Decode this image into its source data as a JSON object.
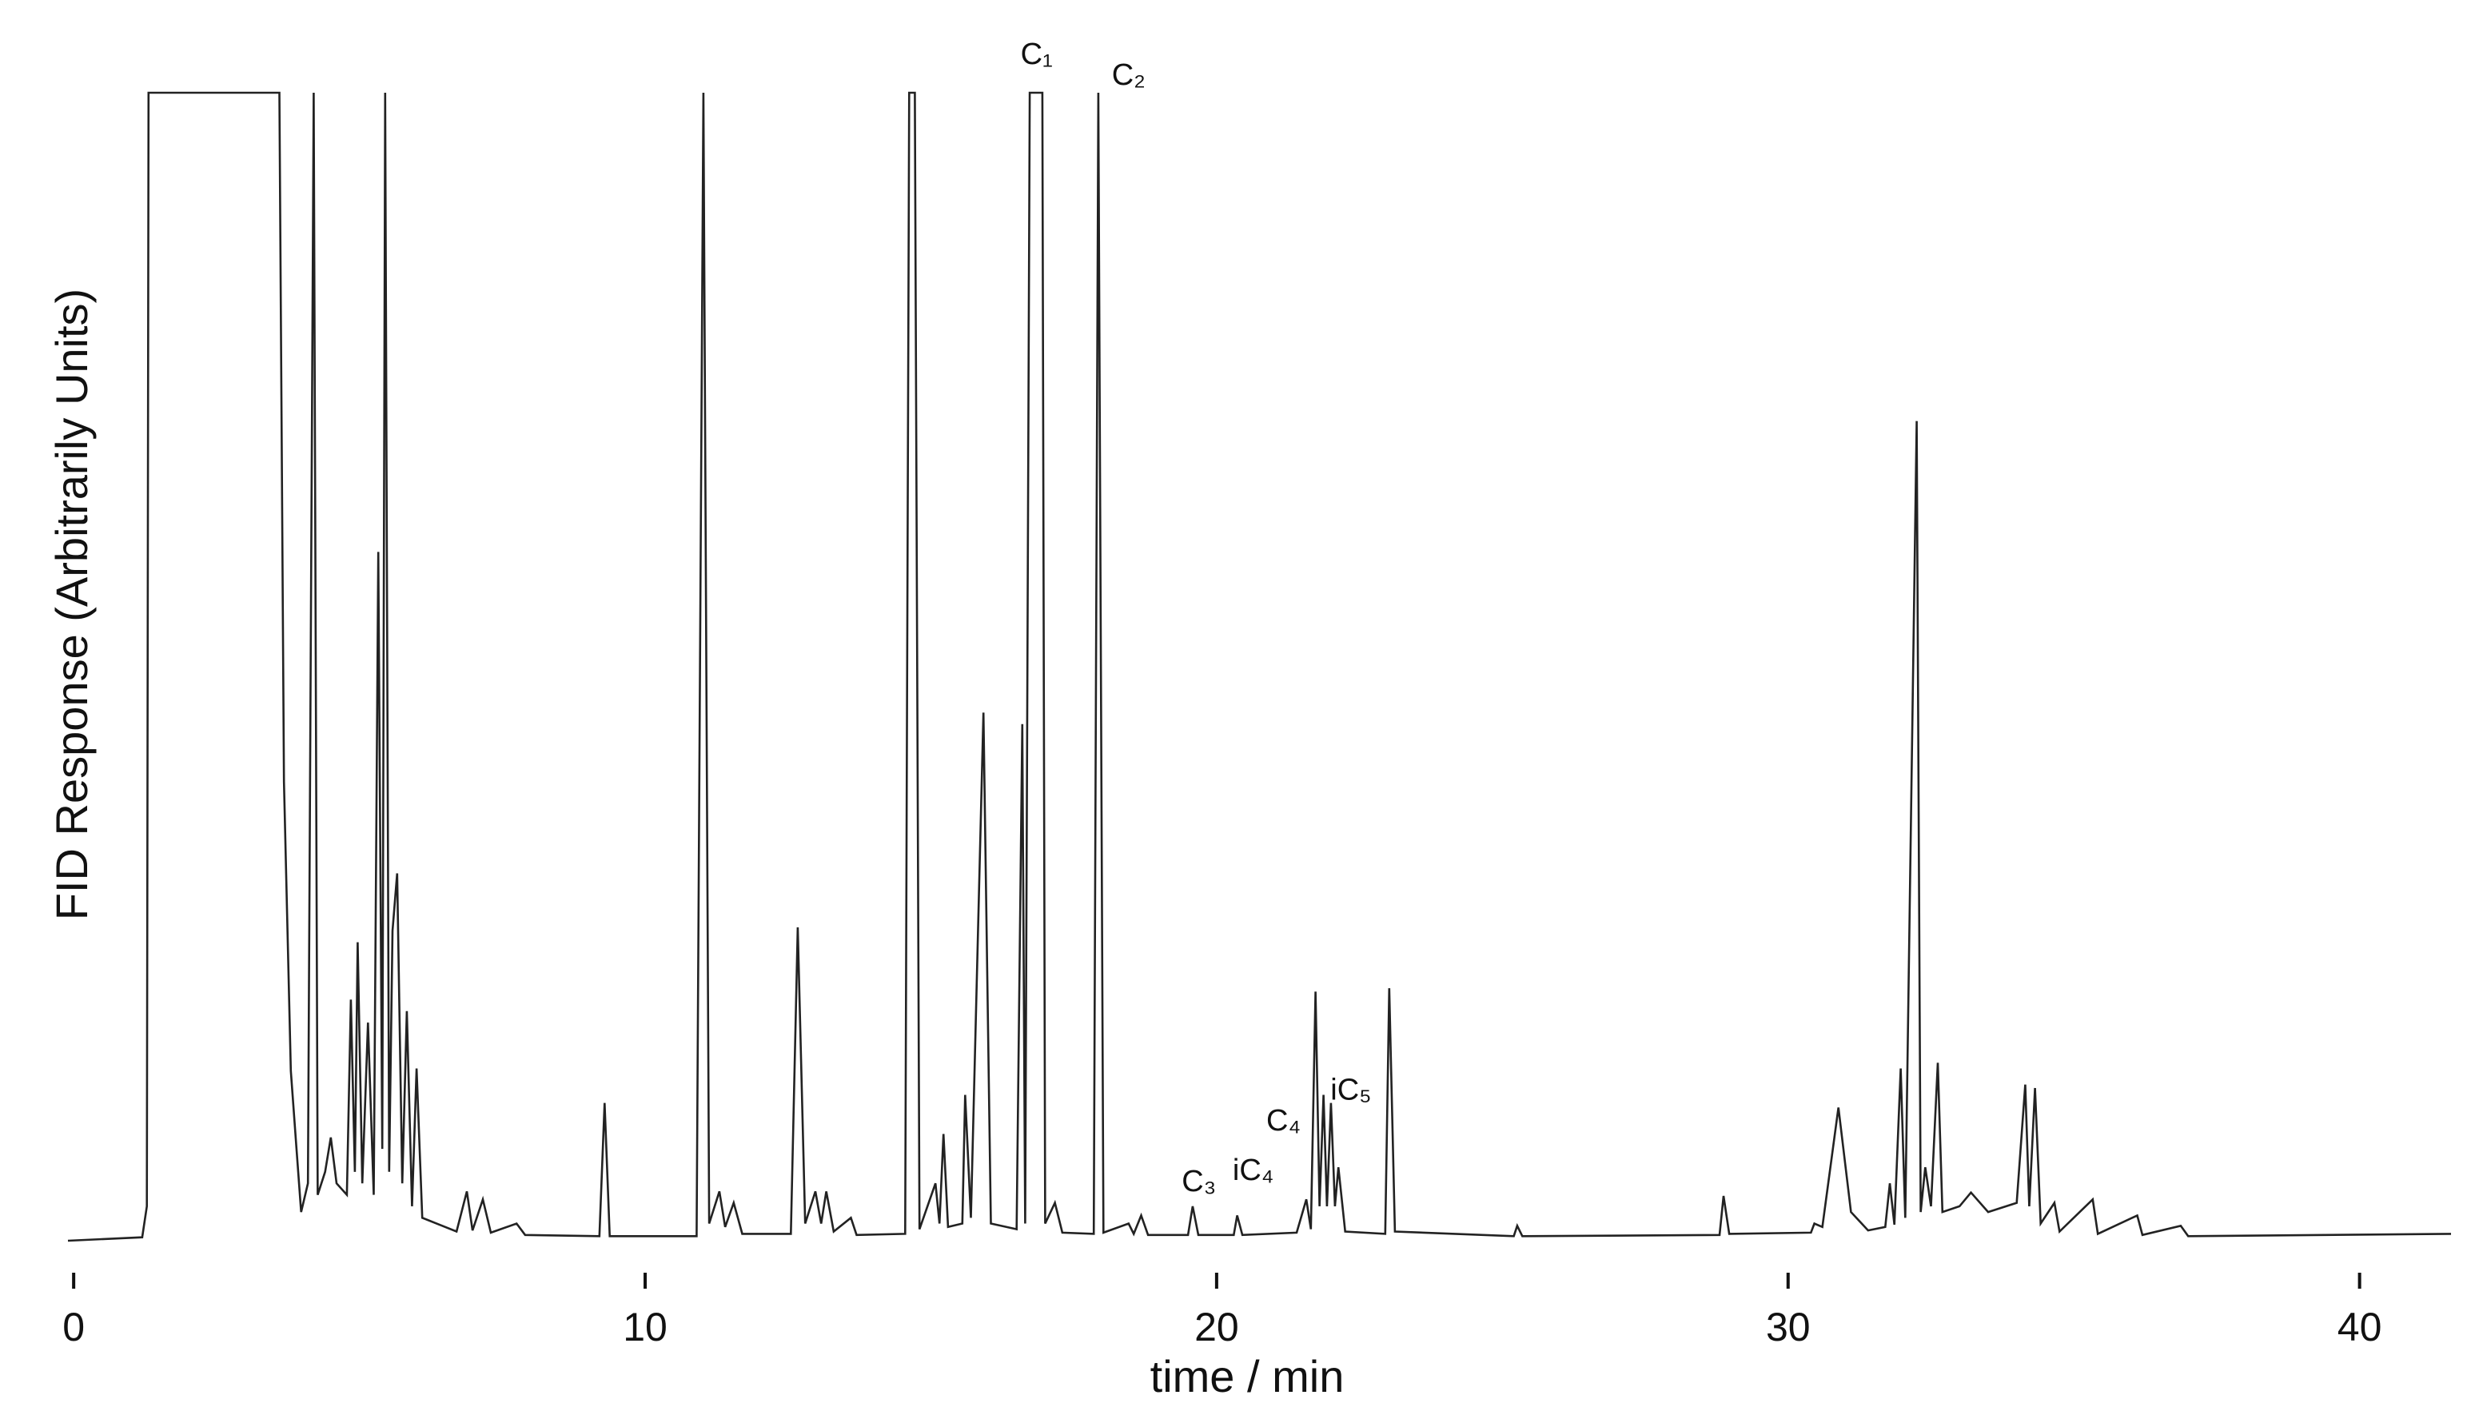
{
  "chart_data": {
    "type": "line",
    "xlabel": "time / min",
    "ylabel": "FID Response (Arbitrarily Units)",
    "color": "#222222",
    "xlim": [
      -0.1,
      41.6
    ],
    "ylim": [
      0,
      100
    ],
    "xticks": [
      0,
      10,
      20,
      30,
      40
    ],
    "x": [
      -0.1,
      1.2,
      1.28,
      1.31,
      1.5,
      3.6,
      3.68,
      3.8,
      3.9,
      3.98,
      4.1,
      4.2,
      4.27,
      4.4,
      4.5,
      4.6,
      4.78,
      4.85,
      4.92,
      4.97,
      5.05,
      5.15,
      5.25,
      5.33,
      5.4,
      5.45,
      5.52,
      5.58,
      5.66,
      5.75,
      5.83,
      5.92,
      6.0,
      6.1,
      6.4,
      6.7,
      6.88,
      6.98,
      7.16,
      7.3,
      7.75,
      7.9,
      9.2,
      9.29,
      9.38,
      10.9,
      11.02,
      11.12,
      11.3,
      11.4,
      11.55,
      11.7,
      12.55,
      12.67,
      12.8,
      12.98,
      13.08,
      13.17,
      13.3,
      13.6,
      13.7,
      14.55,
      14.62,
      14.72,
      14.8,
      15.08,
      15.15,
      15.22,
      15.3,
      15.55,
      15.6,
      15.7,
      15.92,
      16.05,
      16.5,
      16.6,
      16.65,
      16.73,
      16.95,
      17.0,
      17.17,
      17.3,
      17.85,
      17.93,
      18.02,
      18.46,
      18.55,
      18.68,
      18.8,
      19.5,
      19.58,
      19.68,
      20.3,
      20.36,
      20.45,
      21.4,
      21.57,
      21.65,
      21.73,
      21.8,
      21.87,
      21.93,
      22.0,
      22.07,
      22.13,
      22.25,
      22.95,
      23.02,
      23.12,
      25.2,
      25.26,
      25.35,
      28.8,
      28.87,
      28.97,
      30.4,
      30.46,
      30.6,
      30.88,
      31.1,
      31.4,
      31.7,
      31.78,
      31.86,
      31.97,
      32.05,
      32.25,
      32.32,
      32.4,
      32.5,
      32.62,
      32.7,
      33.0,
      33.2,
      33.5,
      34.0,
      34.15,
      34.22,
      34.32,
      34.42,
      34.66,
      34.75,
      35.33,
      35.42,
      36.11,
      36.2,
      36.87,
      37.0,
      41.6
    ],
    "values": [
      0,
      0.3,
      3,
      100,
      100,
      100,
      40,
      14.8,
      8,
      2.5,
      5,
      100,
      4,
      6,
      9,
      5,
      4,
      21,
      6,
      26,
      5,
      19,
      4,
      60,
      8,
      100,
      6,
      27,
      32,
      5,
      20,
      3,
      15,
      2,
      1.4,
      0.8,
      4.3,
      0.9,
      3.6,
      0.7,
      1.5,
      0.5,
      0.4,
      12,
      0.4,
      0.4,
      100,
      1.5,
      4.3,
      1.2,
      3.3,
      0.6,
      0.6,
      27.3,
      1.5,
      4.3,
      1.5,
      4.3,
      0.8,
      2,
      0.5,
      0.6,
      100,
      100,
      1,
      5,
      1.5,
      9.3,
      1.2,
      1.5,
      12.7,
      2,
      46,
      1.5,
      1,
      45,
      1.5,
      100,
      100,
      1.5,
      3.3,
      0.7,
      0.6,
      100,
      0.7,
      1.5,
      0.6,
      2.2,
      0.5,
      0.5,
      3,
      0.5,
      0.5,
      2.2,
      0.5,
      0.7,
      3.6,
      1,
      21.7,
      3,
      12.7,
      3,
      12,
      3,
      6.4,
      0.8,
      0.6,
      22,
      0.8,
      0.4,
      1.3,
      0.4,
      0.5,
      3.9,
      0.6,
      0.7,
      1.5,
      1.2,
      11.6,
      2.5,
      0.9,
      1.2,
      5,
      1.4,
      15,
      2,
      71.4,
      2.5,
      6.4,
      3,
      15.5,
      2.5,
      3,
      4.2,
      2.5,
      3.3,
      13.6,
      3,
      13.3,
      1.5,
      3.3,
      0.8,
      3.6,
      0.6,
      2.2,
      0.5,
      1.3,
      0.4,
      0.6
    ],
    "annotations": [
      {
        "text": "C₁",
        "x": 16.85,
        "y": 103.2
      },
      {
        "text": "C₂",
        "x": 18.46,
        "y": 101.4
      },
      {
        "text": "C₃",
        "x": 19.69,
        "y": 5
      },
      {
        "text": "iC₄",
        "x": 20.64,
        "y": 6
      },
      {
        "text": "C₄",
        "x": 21.17,
        "y": 10.3
      },
      {
        "text": "iC₅",
        "x": 22.35,
        "y": 13
      }
    ]
  }
}
